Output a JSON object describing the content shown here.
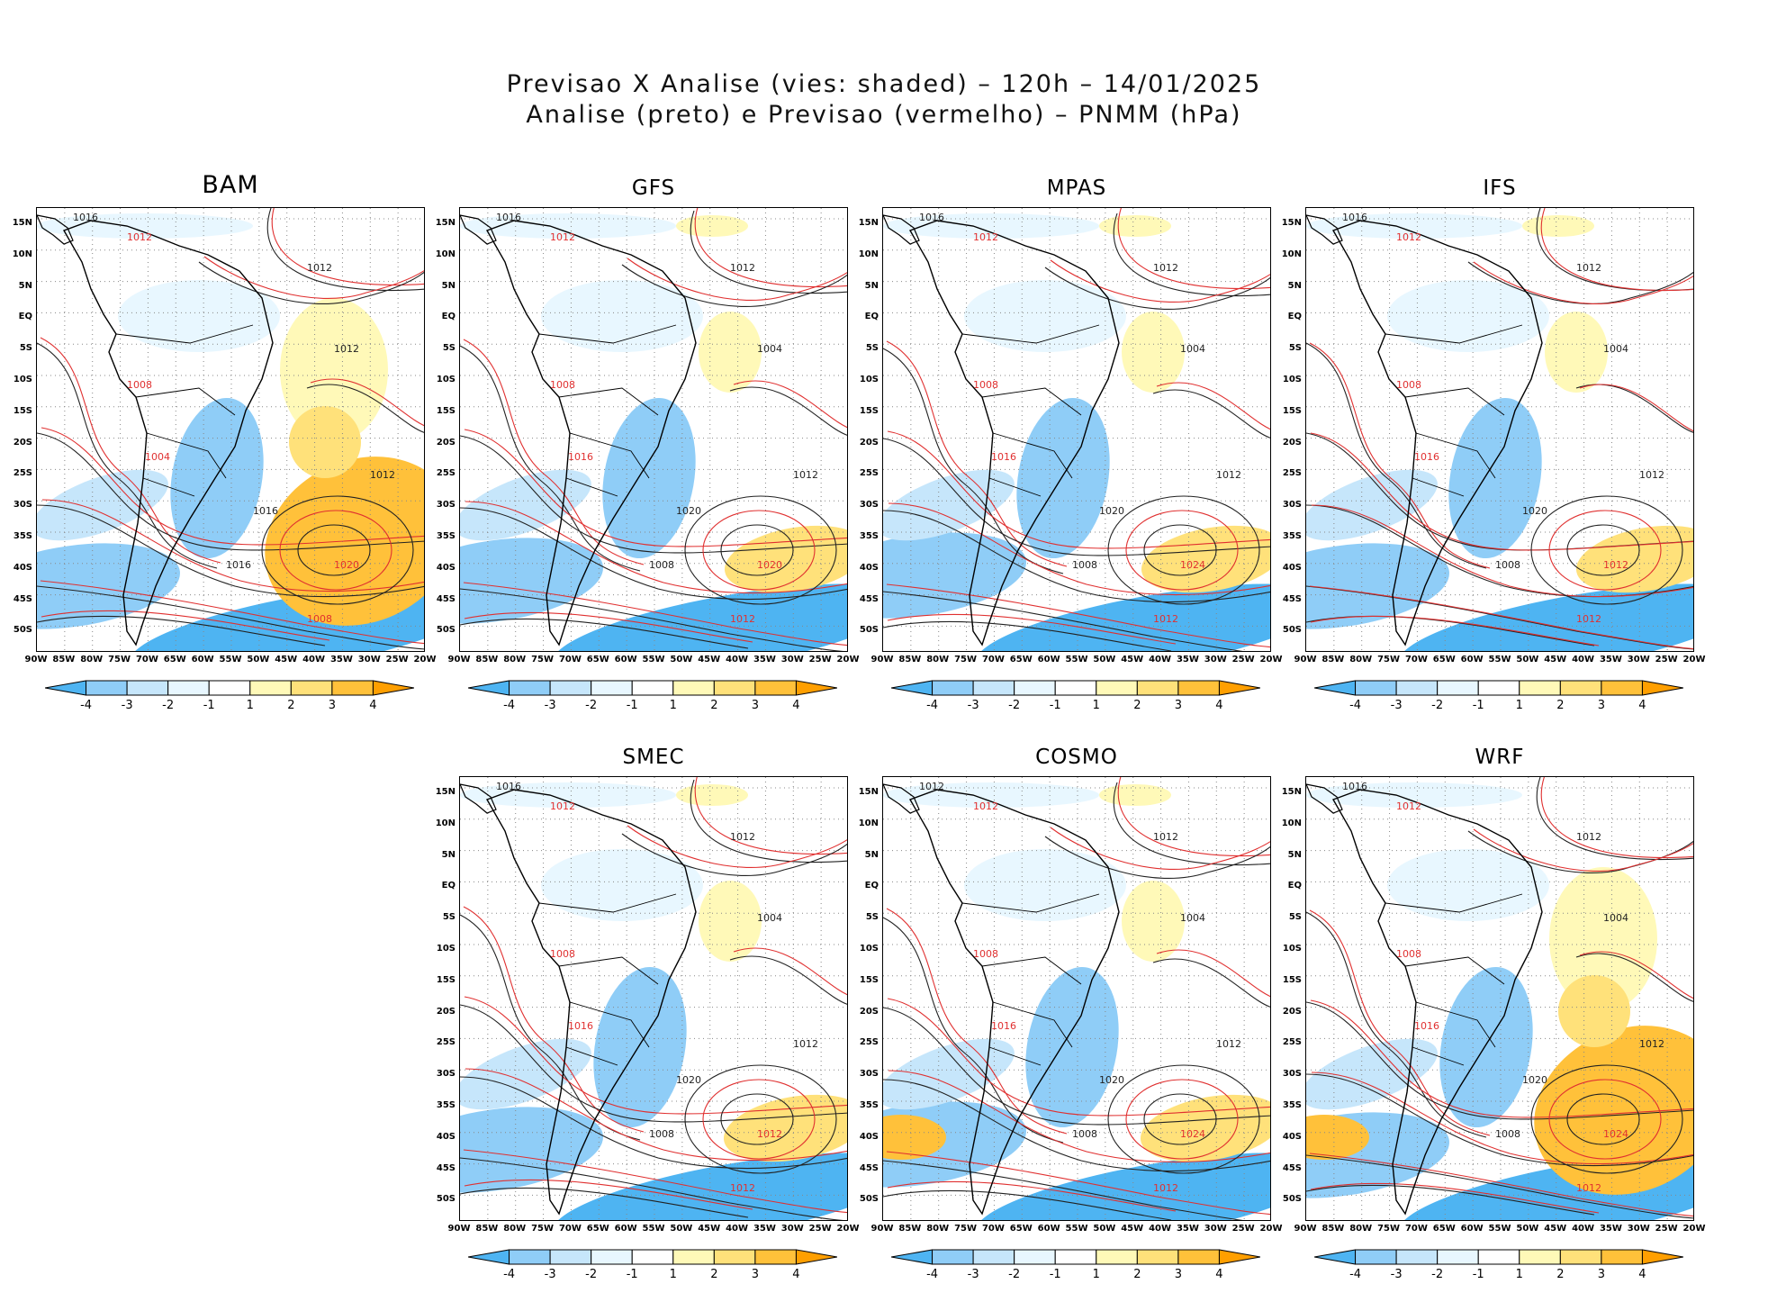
{
  "figure": {
    "title_line1": "Previsao X Analise (vies: shaded) – 120h – 14/01/2025",
    "title_line2": "Analise (preto) e Previsao (vermelho) – PNMM (hPa)"
  },
  "axes": {
    "lat_labels": [
      "15N",
      "10N",
      "5N",
      "EQ",
      "5S",
      "10S",
      "15S",
      "20S",
      "25S",
      "30S",
      "35S",
      "40S",
      "45S",
      "50S"
    ],
    "lon_labels": [
      "90W",
      "85W",
      "80W",
      "75W",
      "70W",
      "65W",
      "60W",
      "55W",
      "50W",
      "45W",
      "40W",
      "35W",
      "30W",
      "25W",
      "20W"
    ]
  },
  "colorbar": {
    "labels": [
      "-4",
      "-3",
      "-2",
      "-1",
      "1",
      "2",
      "3",
      "4"
    ],
    "colors": [
      "#4eb4f2",
      "#8fcdf7",
      "#c6e6fb",
      "#e8f7ff",
      "#ffffff",
      "#fff9b8",
      "#ffe17a",
      "#ffc13a",
      "#ff9f00"
    ]
  },
  "panels": [
    {
      "name": "BAM",
      "contours": [
        "1016",
        "1012",
        "1012",
        "1008",
        "1012",
        "1004",
        "1016",
        "1020",
        "1016",
        "1008",
        "1012"
      ]
    },
    {
      "name": "GFS",
      "contours": [
        "1016",
        "1012",
        "1012",
        "1008",
        "1004",
        "1016",
        "1020",
        "1020",
        "1008",
        "1012",
        "1012"
      ]
    },
    {
      "name": "MPAS",
      "contours": [
        "1016",
        "1012",
        "1012",
        "1008",
        "1004",
        "1016",
        "1020",
        "1024",
        "1008",
        "1012",
        "1012"
      ]
    },
    {
      "name": "IFS",
      "contours": [
        "1016",
        "1012",
        "1012",
        "1008",
        "1004",
        "1016",
        "1020",
        "1012",
        "1008",
        "1012",
        "1012"
      ]
    },
    {
      "name": "SMEC",
      "contours": [
        "1016",
        "1012",
        "1012",
        "1008",
        "1004",
        "1016",
        "1020",
        "1012",
        "1008",
        "1012",
        "1012"
      ]
    },
    {
      "name": "COSMO",
      "contours": [
        "1012",
        "1012",
        "1012",
        "1008",
        "1004",
        "1016",
        "1020",
        "1024",
        "1008",
        "1012",
        "1012"
      ]
    },
    {
      "name": "WRF",
      "contours": [
        "1016",
        "1012",
        "1012",
        "1008",
        "1004",
        "1016",
        "1020",
        "1024",
        "1008",
        "1012",
        "1012"
      ]
    }
  ]
}
